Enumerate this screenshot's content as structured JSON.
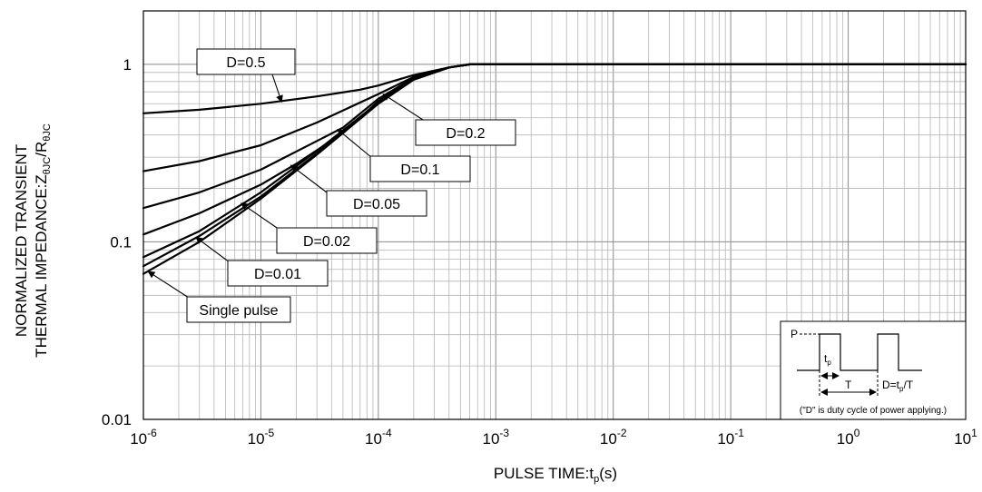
{
  "chart_data": {
    "type": "line",
    "x_scale": "log",
    "y_scale": "log",
    "xlim": [
      1e-06,
      10
    ],
    "ylim": [
      0.01,
      2
    ],
    "grid": true,
    "xlabel_main": "PULSE TIME:t",
    "xlabel_sub": "p",
    "xlabel_end": "(s)",
    "ylabel_line1": "NORMALIZED TRANSIENT",
    "ylabel_line2_main": "THERMAL IMPEDANCE:Z",
    "ylabel_line2_sub1": "θJC",
    "ylabel_line2_mid": "/R",
    "ylabel_line2_sub2": "θJC",
    "x_ticks": [
      {
        "value": 1e-06,
        "base": "10",
        "exp": "-6"
      },
      {
        "value": 1e-05,
        "base": "10",
        "exp": "-5"
      },
      {
        "value": 0.0001,
        "base": "10",
        "exp": "-4"
      },
      {
        "value": 0.001,
        "base": "10",
        "exp": "-3"
      },
      {
        "value": 0.01,
        "base": "10",
        "exp": "-2"
      },
      {
        "value": 0.1,
        "base": "10",
        "exp": "-1"
      },
      {
        "value": 1,
        "base": "10",
        "exp": "0"
      },
      {
        "value": 10,
        "base": "10",
        "exp": "1"
      }
    ],
    "y_ticks": [
      {
        "value": 0.01,
        "label": "0.01"
      },
      {
        "value": 0.1,
        "label": "0.1"
      },
      {
        "value": 1,
        "label": "1"
      }
    ],
    "series": [
      {
        "name": "D=0.5",
        "points": [
          [
            1e-06,
            0.53
          ],
          [
            3e-06,
            0.555
          ],
          [
            1e-05,
            0.6
          ],
          [
            3e-05,
            0.66
          ],
          [
            7e-05,
            0.72
          ],
          [
            0.0001,
            0.76
          ],
          [
            0.0002,
            0.87
          ],
          [
            0.0004,
            0.96
          ],
          [
            0.0006,
            1.0
          ],
          [
            10,
            1.0
          ]
        ]
      },
      {
        "name": "D=0.2",
        "points": [
          [
            1e-06,
            0.25
          ],
          [
            3e-06,
            0.285
          ],
          [
            1e-05,
            0.35
          ],
          [
            3e-05,
            0.47
          ],
          [
            0.0001,
            0.68
          ],
          [
            0.0002,
            0.85
          ],
          [
            0.0004,
            0.96
          ],
          [
            0.0006,
            1.0
          ],
          [
            10,
            1.0
          ]
        ]
      },
      {
        "name": "D=0.1",
        "points": [
          [
            1e-06,
            0.155
          ],
          [
            3e-06,
            0.19
          ],
          [
            1e-05,
            0.255
          ],
          [
            3e-05,
            0.37
          ],
          [
            5e-05,
            0.44
          ],
          [
            0.0001,
            0.64
          ],
          [
            0.0002,
            0.84
          ],
          [
            0.0004,
            0.96
          ],
          [
            0.0006,
            1.0
          ],
          [
            10,
            1.0
          ]
        ]
      },
      {
        "name": "D=0.05",
        "points": [
          [
            1e-06,
            0.11
          ],
          [
            3e-06,
            0.145
          ],
          [
            1e-05,
            0.21
          ],
          [
            2e-05,
            0.275
          ],
          [
            5e-05,
            0.41
          ],
          [
            0.0001,
            0.62
          ],
          [
            0.0002,
            0.83
          ],
          [
            0.0004,
            0.96
          ],
          [
            0.0006,
            1.0
          ],
          [
            10,
            1.0
          ]
        ]
      },
      {
        "name": "D=0.02",
        "points": [
          [
            1e-06,
            0.082
          ],
          [
            3e-06,
            0.115
          ],
          [
            1e-05,
            0.19
          ],
          [
            3e-05,
            0.325
          ],
          [
            0.0001,
            0.61
          ],
          [
            0.0002,
            0.82
          ],
          [
            0.0004,
            0.96
          ],
          [
            0.0006,
            1.0
          ],
          [
            10,
            1.0
          ]
        ]
      },
      {
        "name": "D=0.01",
        "points": [
          [
            1e-06,
            0.073
          ],
          [
            3e-06,
            0.108
          ],
          [
            1e-05,
            0.18
          ],
          [
            3e-05,
            0.315
          ],
          [
            0.0001,
            0.605
          ],
          [
            0.0002,
            0.82
          ],
          [
            0.0004,
            0.96
          ],
          [
            0.0006,
            1.0
          ],
          [
            10,
            1.0
          ]
        ]
      },
      {
        "name": "Single pulse",
        "points": [
          [
            1e-06,
            0.066
          ],
          [
            3e-06,
            0.1
          ],
          [
            1e-05,
            0.175
          ],
          [
            3e-05,
            0.31
          ],
          [
            0.0001,
            0.6
          ],
          [
            0.0002,
            0.82
          ],
          [
            0.0004,
            0.96
          ],
          [
            0.0006,
            1.0
          ],
          [
            10,
            1.0
          ]
        ]
      }
    ],
    "annotations": [
      {
        "text": "D=0.5",
        "arrow_x": 1.5e-05,
        "arrow_y": 0.615
      },
      {
        "text": "D=0.2",
        "arrow_x": 0.00011,
        "arrow_y": 0.68
      },
      {
        "text": "D=0.1",
        "arrow_x": 4.5e-05,
        "arrow_y": 0.43
      },
      {
        "text": "D=0.05",
        "arrow_x": 1.8e-05,
        "arrow_y": 0.27
      },
      {
        "text": "D=0.02",
        "arrow_x": 6.8e-06,
        "arrow_y": 0.165
      },
      {
        "text": "D=0.01",
        "arrow_x": 2.8e-06,
        "arrow_y": 0.106
      },
      {
        "text": "Single pulse",
        "arrow_x": 1.1e-06,
        "arrow_y": 0.068
      }
    ],
    "inset": {
      "p_label": "P",
      "tp_main": "t",
      "tp_sub": "p",
      "t_label": "T",
      "d_main": "D=t",
      "d_sub": "p",
      "d_end": "/T",
      "note": "(\"D\" is duty cycle of power applying.)"
    }
  }
}
